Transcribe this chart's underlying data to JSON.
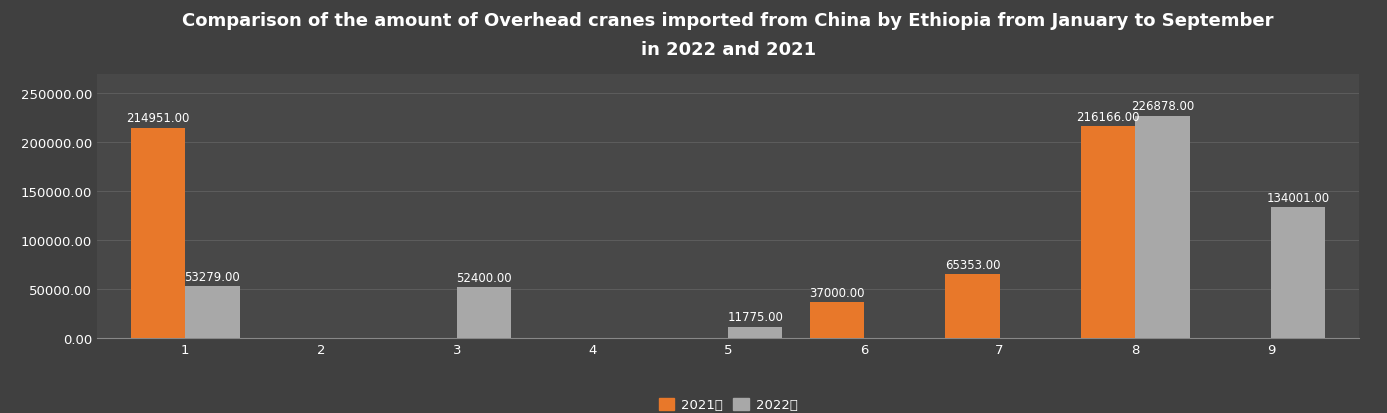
{
  "title": "Comparison of the amount of Overhead cranes imported from China by Ethiopia from January to September\nin 2022 and 2021",
  "months": [
    1,
    2,
    3,
    4,
    5,
    6,
    7,
    8,
    9
  ],
  "values_2021": [
    214951.0,
    0,
    0,
    0,
    0,
    37000.0,
    65353.0,
    216166.0,
    0
  ],
  "values_2022": [
    53279.0,
    0,
    52400.0,
    0,
    11775.0,
    0,
    0,
    226878.0,
    134001.0
  ],
  "color_2021": "#E8782A",
  "color_2022": "#A8A8A8",
  "background_color": "#404040",
  "plot_bg_color": "#484848",
  "text_color": "#ffffff",
  "grid_color": "#606060",
  "legend_2021": "2021年",
  "legend_2022": "2022年",
  "ylim": [
    0,
    270000
  ],
  "yticks": [
    0,
    50000,
    100000,
    150000,
    200000,
    250000
  ],
  "bar_width": 0.4,
  "title_fontsize": 13,
  "tick_fontsize": 9.5,
  "label_fontsize": 8.5
}
